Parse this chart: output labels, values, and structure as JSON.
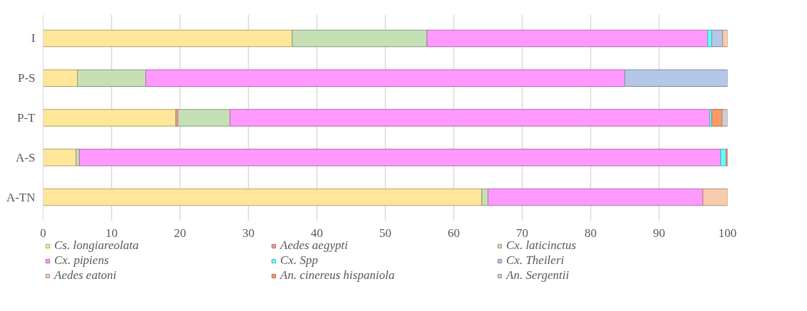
{
  "chart_data": {
    "type": "bar",
    "orientation": "horizontal",
    "stacked": true,
    "categories": [
      "I",
      "P-S",
      "P-T",
      "A-S",
      "A-TN"
    ],
    "series": [
      {
        "name": "Cs. longiareolata",
        "color": "#ffe699",
        "values": [
          36.4,
          5.0,
          19.4,
          4.8,
          64.1
        ]
      },
      {
        "name": "Aedes aegypti",
        "color": "#ff9999",
        "values": [
          null,
          null,
          0.3,
          null,
          null
        ]
      },
      {
        "name": "Cx. laticinctus",
        "color": "#c5e0b4",
        "values": [
          19.7,
          10.0,
          7.6,
          0.5,
          0.9
        ]
      },
      {
        "name": "Cx. pipiens",
        "color": "#ff99ff",
        "values": [
          41.0,
          70.0,
          70.1,
          93.7,
          31.4
        ]
      },
      {
        "name": "Cx. Spp",
        "color": "#66ffff",
        "values": [
          0.6,
          null,
          0.3,
          0.8,
          null
        ]
      },
      {
        "name": "Cx. Theileri",
        "color": "#b4c7e7",
        "values": [
          1.6,
          15.0,
          null,
          null,
          null
        ]
      },
      {
        "name": "Aedes eatoni",
        "color": "#f8cbad",
        "values": [
          0.7,
          null,
          null,
          null,
          3.6
        ]
      },
      {
        "name": "An. cinereus hispaniola",
        "color": "#ff9966",
        "values": [
          null,
          null,
          1.5,
          0.2,
          null
        ]
      },
      {
        "name": "An. Sergentii",
        "color": "#d0cece",
        "values": [
          null,
          null,
          0.8,
          null,
          null
        ]
      }
    ],
    "xlim": [
      0,
      100
    ],
    "xticks": [
      0,
      10,
      20,
      30,
      40,
      50,
      60,
      70,
      80,
      90,
      100
    ],
    "grid": "x",
    "legend": "bottom"
  }
}
